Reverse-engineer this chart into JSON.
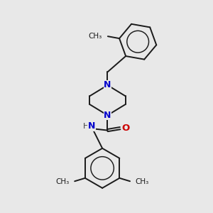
{
  "background_color": "#e8e8e8",
  "bond_color": "#1a1a1a",
  "N_color": "#0000cc",
  "O_color": "#cc0000",
  "H_color": "#404040",
  "line_width": 1.4,
  "fig_w": 3.0,
  "fig_h": 3.0,
  "dpi": 100,
  "xlim": [
    0,
    10
  ],
  "ylim": [
    0,
    10
  ]
}
